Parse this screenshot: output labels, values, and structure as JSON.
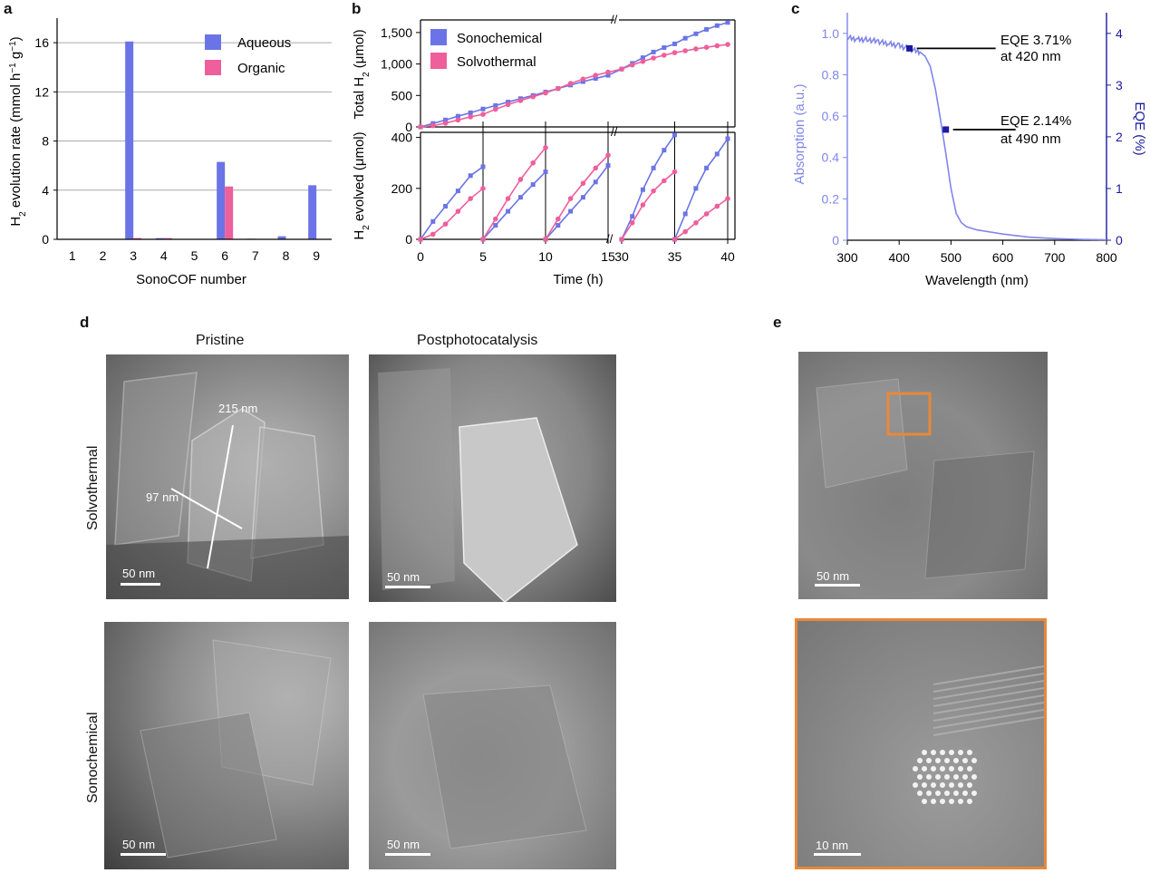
{
  "panels": {
    "a": "a",
    "b": "b",
    "c": "c",
    "d": "d",
    "e": "e"
  },
  "colors": {
    "blue": "#6b74e6",
    "pink": "#ee5f9b",
    "lightblue": "#7f86ea",
    "eqe": "#1b1aa0",
    "orange": "#e8883a"
  },
  "chart_data": [
    {
      "type": "bar",
      "panel": "a",
      "categories": [
        "1",
        "2",
        "3",
        "4",
        "5",
        "6",
        "7",
        "8",
        "9"
      ],
      "series": [
        {
          "name": "Aqueous",
          "values": [
            0,
            0,
            16.1,
            0.1,
            0,
            6.3,
            0.05,
            0.25,
            4.4
          ]
        },
        {
          "name": "Organic",
          "values": [
            0,
            0,
            0.1,
            0.1,
            0,
            4.3,
            0,
            0,
            0
          ]
        }
      ],
      "xlabel": "SonoCOF number",
      "ylabel_parts": {
        "a": "H",
        "b": "2",
        "c": " evolution rate (mmol h",
        "d": "−1",
        "e": " g",
        "f": "−1",
        "g": ")"
      },
      "yticks": [
        "0",
        "4",
        "8",
        "12",
        "16"
      ],
      "ylim": [
        0,
        18
      ],
      "grid": true,
      "legend": "top-right"
    },
    {
      "type": "line",
      "panel": "b-top",
      "ylabel_parts": {
        "a": "Total H",
        "b": "2",
        "c": " (μmol)"
      },
      "yticks": [
        "0",
        "500",
        "1,000",
        "1,500"
      ],
      "ylim": [
        0,
        1700
      ],
      "legend": "top-left",
      "series": [
        {
          "name": "Sonochemical",
          "x": [
            0,
            1,
            2,
            3,
            4,
            5,
            6,
            7,
            8,
            9,
            10,
            11,
            12,
            13,
            14,
            15,
            30,
            31,
            32,
            33,
            34,
            35,
            36,
            37,
            38,
            39,
            40
          ],
          "values": [
            0,
            55,
            110,
            170,
            225,
            285,
            340,
            395,
            450,
            500,
            555,
            610,
            665,
            720,
            770,
            820,
            920,
            1010,
            1100,
            1190,
            1260,
            1320,
            1410,
            1480,
            1550,
            1610,
            1660
          ]
        },
        {
          "name": "Solvothermal",
          "x": [
            0,
            1,
            2,
            3,
            4,
            5,
            6,
            7,
            8,
            9,
            10,
            11,
            12,
            13,
            14,
            15,
            30,
            31,
            32,
            33,
            34,
            35,
            36,
            37,
            38,
            39,
            40
          ],
          "values": [
            0,
            20,
            60,
            110,
            160,
            200,
            280,
            355,
            420,
            480,
            540,
            610,
            690,
            760,
            820,
            870,
            920,
            985,
            1040,
            1095,
            1140,
            1180,
            1210,
            1240,
            1265,
            1290,
            1310
          ]
        }
      ]
    },
    {
      "type": "line",
      "panel": "b-bottom",
      "ylabel_parts": {
        "a": "H",
        "b": "2",
        "c": " evolved (μmol)"
      },
      "xlabel": "Time (h)",
      "xticks_left": [
        "0",
        "5",
        "10",
        "15"
      ],
      "xticks_right": [
        "30",
        "35",
        "40"
      ],
      "yticks": [
        "0",
        "200",
        "400"
      ],
      "ylim": [
        0,
        420
      ],
      "cycles": [
        {
          "sono": {
            "x": [
              0,
              1,
              2,
              3,
              4,
              5
            ],
            "values": [
              0,
              70,
              130,
              190,
              250,
              285
            ]
          },
          "solvo": {
            "x": [
              0,
              1,
              2,
              3,
              4,
              5
            ],
            "values": [
              0,
              20,
              60,
              110,
              160,
              200
            ]
          }
        },
        {
          "sono": {
            "x": [
              5,
              6,
              7,
              8,
              9,
              10
            ],
            "values": [
              0,
              55,
              110,
              165,
              215,
              265
            ]
          },
          "solvo": {
            "x": [
              5,
              6,
              7,
              8,
              9,
              10
            ],
            "values": [
              0,
              80,
              160,
              235,
              300,
              360
            ]
          }
        },
        {
          "sono": {
            "x": [
              10,
              11,
              12,
              13,
              14,
              15
            ],
            "values": [
              0,
              55,
              110,
              165,
              225,
              290
            ]
          },
          "solvo": {
            "x": [
              10,
              11,
              12,
              13,
              14,
              15
            ],
            "values": [
              0,
              80,
              160,
              220,
              280,
              330
            ]
          }
        },
        {
          "sono": {
            "x": [
              30,
              31,
              32,
              33,
              34,
              35
            ],
            "values": [
              0,
              90,
              195,
              280,
              350,
              410
            ]
          },
          "solvo": {
            "x": [
              30,
              31,
              32,
              33,
              34,
              35
            ],
            "values": [
              0,
              65,
              135,
              190,
              230,
              265
            ]
          }
        },
        {
          "sono": {
            "x": [
              35,
              36,
              37,
              38,
              39,
              40
            ],
            "values": [
              0,
              100,
              200,
              280,
              335,
              395
            ]
          },
          "solvo": {
            "x": [
              35,
              36,
              37,
              38,
              39,
              40
            ],
            "values": [
              0,
              30,
              65,
              100,
              130,
              160
            ]
          }
        }
      ]
    },
    {
      "type": "line",
      "panel": "c",
      "xlabel": "Wavelength (nm)",
      "ylabel_left": "Absorption (a.u.)",
      "ylabel_right": "EQE (%)",
      "xticks": [
        "300",
        "400",
        "500",
        "600",
        "700",
        "800"
      ],
      "xlim": [
        300,
        800
      ],
      "yticks_left": [
        "0",
        "0.2",
        "0.4",
        "0.6",
        "0.8",
        "1.0"
      ],
      "ylim_left": [
        0,
        1.1
      ],
      "yticks_right": [
        "0",
        "1",
        "2",
        "3",
        "4"
      ],
      "ylim_right": [
        0,
        4.4
      ],
      "absorption": {
        "x": [
          300,
          320,
          340,
          360,
          380,
          400,
          420,
          440,
          450,
          460,
          470,
          480,
          490,
          500,
          510,
          520,
          530,
          550,
          600,
          650,
          700,
          750,
          800
        ],
        "values": [
          0.98,
          0.97,
          0.97,
          0.96,
          0.95,
          0.94,
          0.925,
          0.91,
          0.89,
          0.84,
          0.73,
          0.58,
          0.42,
          0.25,
          0.13,
          0.085,
          0.065,
          0.05,
          0.03,
          0.015,
          0.008,
          0.004,
          0.002
        ]
      },
      "eqe_points": [
        {
          "x": 420,
          "y": 3.71
        },
        {
          "x": 490,
          "y": 2.14
        }
      ],
      "annotations": [
        {
          "line1": "EQE 3.71%",
          "line2": "at 420 nm"
        },
        {
          "line1": "EQE 2.14%",
          "line2": "at 490 nm"
        }
      ]
    }
  ],
  "panel_d": {
    "col_pristine": "Pristine",
    "col_post": "Postphotocatalysis",
    "row_solvo": "Solvothermal",
    "row_sono": "Sonochemical",
    "measure_long": "215 nm",
    "measure_short": "97 nm",
    "scale": "50 nm"
  },
  "panel_e": {
    "scale_top": "50 nm",
    "scale_bottom": "10 nm"
  }
}
